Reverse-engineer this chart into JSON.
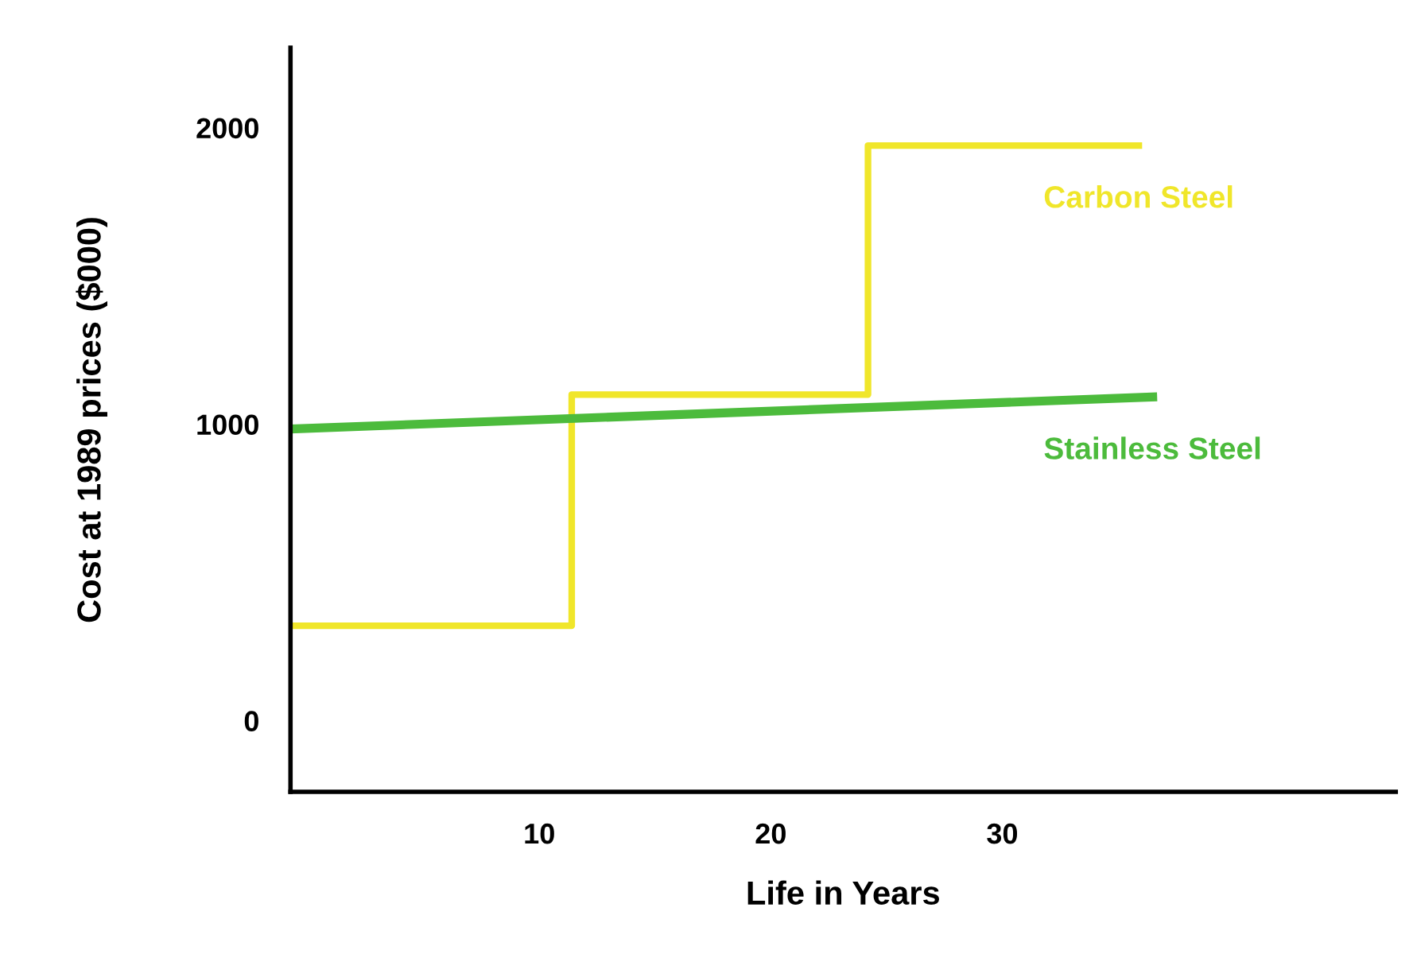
{
  "chart_data": {
    "type": "line",
    "xlabel": "Life in Years",
    "ylabel": "Cost at 1989 prices ($000)",
    "series": [
      {
        "name": "Carbon Steel",
        "type": "step",
        "color": "#f0e62a",
        "x": [
          -0.75,
          11.4,
          24.2,
          35.9
        ],
        "values": [
          320,
          1100,
          1940,
          1940
        ]
      },
      {
        "name": "Stainless Steel",
        "color": "#4cbb3c",
        "x": [
          -0.75,
          36.5
        ],
        "values": [
          984,
          1092
        ]
      }
    ],
    "xlim": [
      -0.75,
      47
    ],
    "xticks": [
      10,
      20,
      30
    ],
    "ylim": [
      -240,
      2270
    ],
    "yticks": [
      0,
      1000,
      2000
    ],
    "grid": false,
    "legend": false
  }
}
